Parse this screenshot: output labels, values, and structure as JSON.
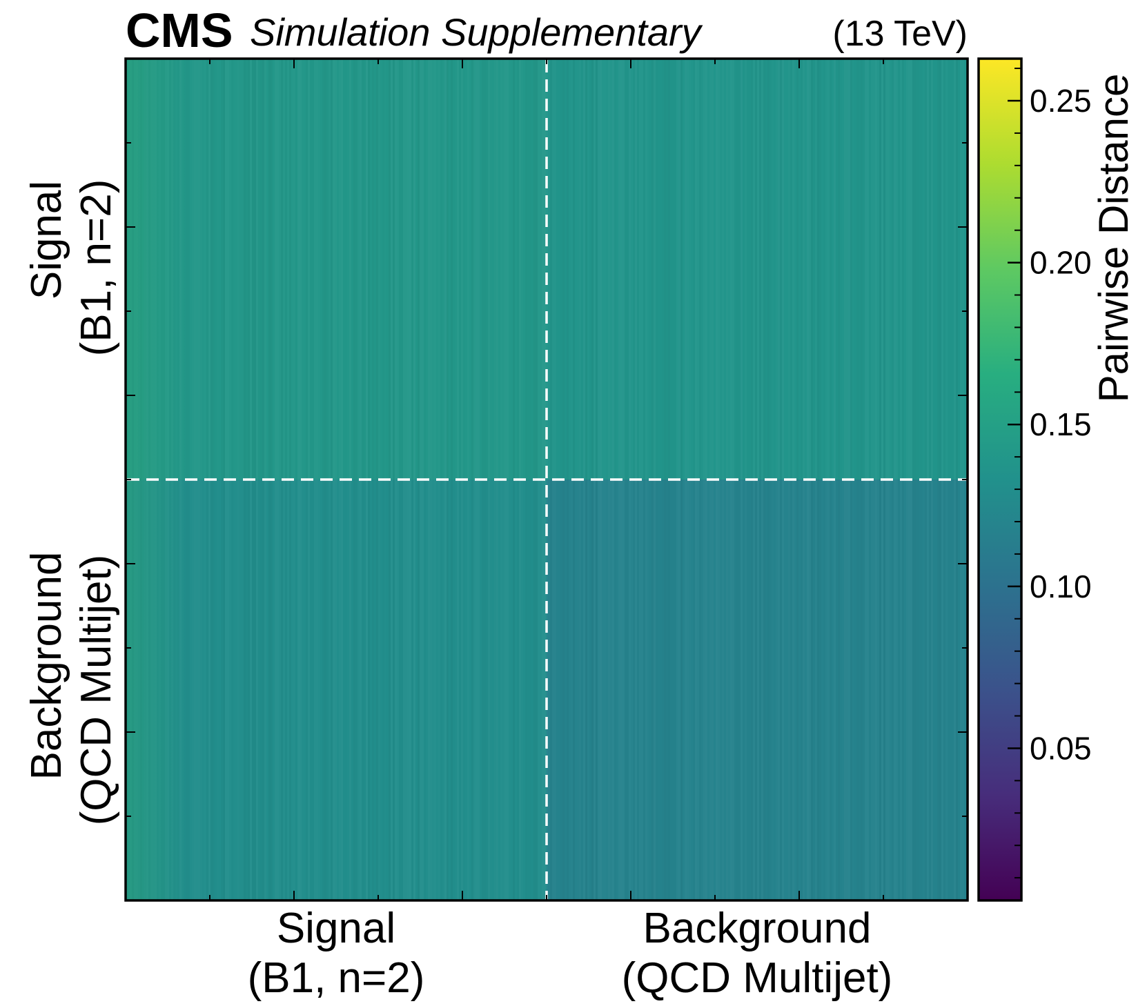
{
  "header": {
    "experiment": "CMS",
    "subtitle": "Simulation Supplementary",
    "energy": "(13 TeV)"
  },
  "chart_data": {
    "type": "heatmap",
    "title": "",
    "xlabel": "",
    "ylabel": "",
    "x_categories": [
      {
        "line1": "Signal",
        "line2": "(B1, n=2)"
      },
      {
        "line1": "Background",
        "line2": "(QCD Multijet)"
      }
    ],
    "y_categories": [
      {
        "line1": "Signal",
        "line2": "(B1, n=2)"
      },
      {
        "line1": "Background",
        "line2": "(QCD Multijet)"
      }
    ],
    "block_values": [
      [
        0.14,
        0.137
      ],
      [
        0.13,
        0.118
      ]
    ],
    "grid": false,
    "separator_lines": "white dashed at signal/background boundary",
    "colorbar": {
      "label": "Pairwise Distance",
      "colormap": "viridis",
      "range": [
        0.003,
        0.263
      ],
      "ticks": [
        "0.05",
        "0.10",
        "0.15",
        "0.20",
        "0.25"
      ]
    }
  },
  "colors": {
    "frame": "#000000",
    "separator": "#ffffff"
  }
}
